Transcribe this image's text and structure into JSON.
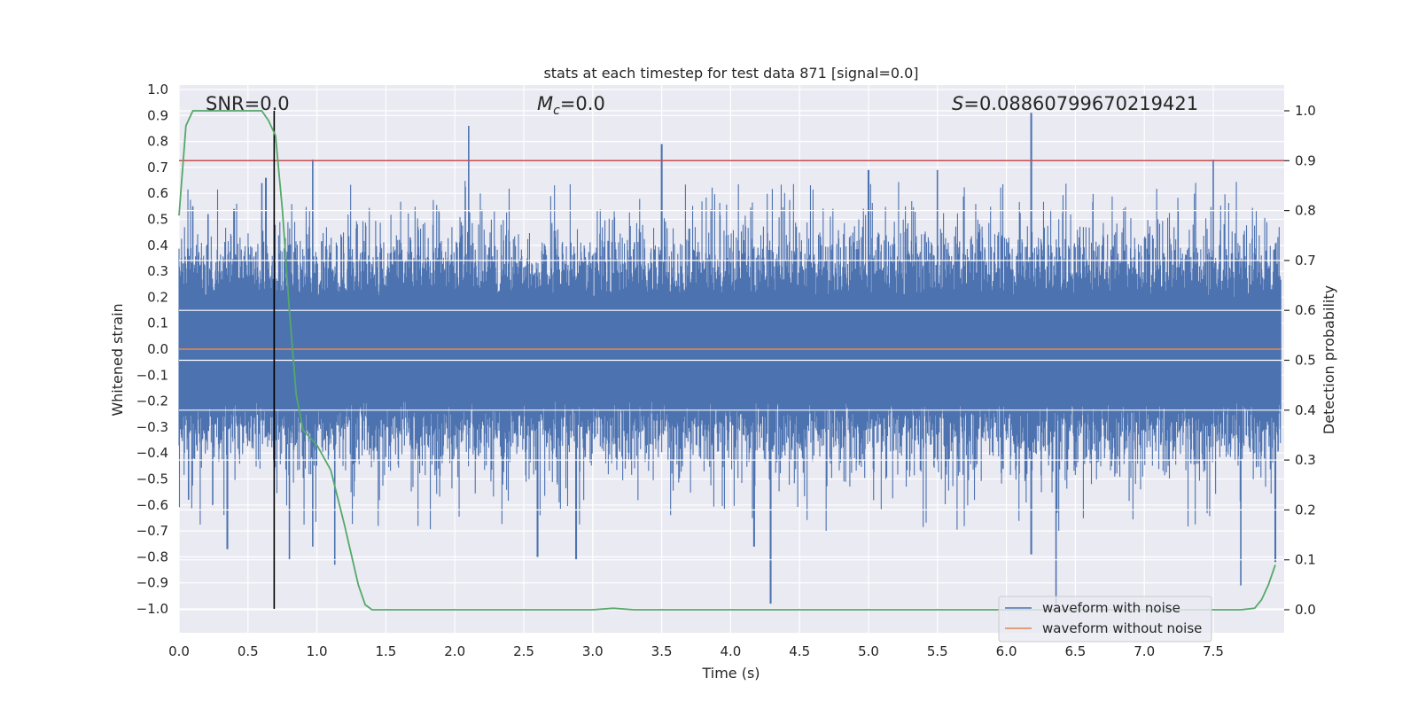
{
  "chart_data": {
    "type": "line",
    "title": "stats at each timestep for test data 871 [signal=0.0]",
    "xlabel": "Time (s)",
    "ylabel": "Whitened strain",
    "y2label": "Detection probability",
    "xlim": [
      0.0,
      8.0
    ],
    "ylim": [
      -1.1,
      1.0
    ],
    "y2lim": [
      -0.05,
      1.045
    ],
    "xticks": [
      "0.0",
      "0.5",
      "1.0",
      "1.5",
      "2.0",
      "2.5",
      "3.0",
      "3.5",
      "4.0",
      "4.5",
      "5.0",
      "5.5",
      "6.0",
      "6.5",
      "7.0",
      "7.5"
    ],
    "yticks": [
      "1.0",
      "0.9",
      "0.8",
      "0.7",
      "0.6",
      "0.5",
      "0.4",
      "0.3",
      "0.2",
      "0.1",
      "0.0",
      "−0.1",
      "−0.2",
      "−0.3",
      "−0.4",
      "−0.5",
      "−0.6",
      "−0.7",
      "−0.8",
      "−0.9",
      "−1.0"
    ],
    "y2ticks": [
      "1.0",
      "0.9",
      "0.8",
      "0.7",
      "0.6",
      "0.5",
      "0.4",
      "0.3",
      "0.2",
      "0.1",
      "0.0"
    ],
    "annotations": {
      "snr": "SNR=0.0",
      "mc_symbol": "M",
      "mc_sub": "c",
      "mc_value": "=0.0",
      "s_symbol": "S",
      "s_value": "=0.08860799670219421"
    },
    "threshold_probability": 0.9,
    "marker_time": 0.69,
    "noise_band": {
      "core_range": [
        -0.17,
        0.18
      ],
      "typical_peak": 0.45,
      "seed": 871
    },
    "noise_peaks": [
      {
        "t": 0.03,
        "v": 0.33
      },
      {
        "t": 0.1,
        "v": 0.55
      },
      {
        "t": 0.21,
        "v": 0.52
      },
      {
        "t": 0.4,
        "v": 0.54
      },
      {
        "t": 0.6,
        "v": 0.64
      },
      {
        "t": 0.63,
        "v": 0.66
      },
      {
        "t": 0.97,
        "v": 0.73
      },
      {
        "t": 2.1,
        "v": 0.86
      },
      {
        "t": 3.5,
        "v": 0.79
      },
      {
        "t": 5.0,
        "v": 0.69
      },
      {
        "t": 5.5,
        "v": 0.69
      },
      {
        "t": 6.18,
        "v": 0.91
      },
      {
        "t": 7.5,
        "v": 0.73
      },
      {
        "t": 0.07,
        "v": -0.58
      },
      {
        "t": 0.35,
        "v": -0.77
      },
      {
        "t": 0.8,
        "v": -0.81
      },
      {
        "t": 0.97,
        "v": -0.76
      },
      {
        "t": 1.13,
        "v": -0.83
      },
      {
        "t": 2.6,
        "v": -0.8
      },
      {
        "t": 2.88,
        "v": -0.81
      },
      {
        "t": 4.17,
        "v": -0.76
      },
      {
        "t": 4.29,
        "v": -0.98
      },
      {
        "t": 6.18,
        "v": -0.79
      },
      {
        "t": 6.36,
        "v": -0.98
      },
      {
        "t": 7.7,
        "v": -0.91
      },
      {
        "t": 7.95,
        "v": -0.82
      }
    ],
    "series": [
      {
        "name": "waveform with noise",
        "color": "#4c72b0"
      },
      {
        "name": "waveform without noise",
        "color": "#dd8452",
        "t": [
          0.0,
          8.0
        ],
        "values": [
          0.0,
          0.0
        ]
      },
      {
        "name": "detection probability",
        "color": "#55a868",
        "axis": "right",
        "t": [
          0.0,
          0.05,
          0.1,
          0.15,
          0.2,
          0.3,
          0.4,
          0.5,
          0.6,
          0.65,
          0.7,
          0.75,
          0.8,
          0.85,
          0.9,
          1.0,
          1.1,
          1.2,
          1.3,
          1.35,
          1.4,
          1.5,
          2.0,
          2.5,
          3.0,
          3.15,
          3.3,
          3.5,
          4.0,
          5.0,
          6.0,
          6.5,
          7.0,
          7.5,
          7.7,
          7.8,
          7.85,
          7.9,
          7.95
        ],
        "values": [
          0.79,
          0.97,
          1.0,
          1.0,
          1.0,
          1.0,
          1.0,
          1.0,
          1.0,
          0.98,
          0.95,
          0.8,
          0.6,
          0.43,
          0.36,
          0.33,
          0.28,
          0.17,
          0.05,
          0.01,
          0.0,
          0.0,
          0.0,
          0.0,
          0.0,
          0.003,
          0.0,
          0.0,
          0.0,
          0.0,
          0.0,
          0.0,
          0.0,
          0.0,
          0.0,
          0.003,
          0.02,
          0.05,
          0.09
        ]
      }
    ],
    "threshold_color": "#c44e52",
    "legend": {
      "location": "lower-right",
      "entries": [
        "waveform with noise",
        "waveform without noise"
      ]
    }
  }
}
